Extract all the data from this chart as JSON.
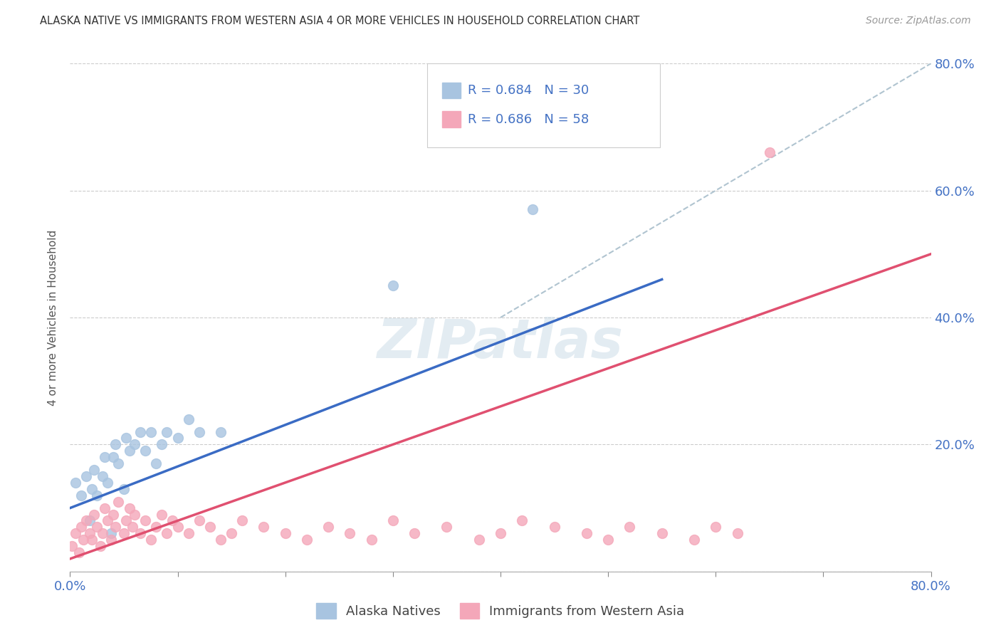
{
  "title": "ALASKA NATIVE VS IMMIGRANTS FROM WESTERN ASIA 4 OR MORE VEHICLES IN HOUSEHOLD CORRELATION CHART",
  "source": "Source: ZipAtlas.com",
  "ylabel": "4 or more Vehicles in Household",
  "xlim": [
    0.0,
    0.8
  ],
  "ylim": [
    0.0,
    0.8
  ],
  "legend_label_blue": "Alaska Natives",
  "legend_label_pink": "Immigrants from Western Asia",
  "R_blue": 0.684,
  "N_blue": 30,
  "R_pink": 0.686,
  "N_pink": 58,
  "color_blue": "#a8c4e0",
  "color_pink": "#f4a7b9",
  "line_blue": "#3a6bc4",
  "line_pink": "#e05070",
  "line_dashed": "#b0c4d0",
  "watermark": "ZIPatlas",
  "blue_line_x": [
    0.0,
    0.55
  ],
  "blue_line_y": [
    0.1,
    0.46
  ],
  "pink_line_x": [
    0.0,
    0.8
  ],
  "pink_line_y": [
    0.02,
    0.5
  ],
  "dashed_line_x": [
    0.4,
    0.8
  ],
  "dashed_line_y": [
    0.4,
    0.8
  ],
  "alaska_x": [
    0.005,
    0.01,
    0.015,
    0.018,
    0.02,
    0.022,
    0.025,
    0.03,
    0.032,
    0.035,
    0.038,
    0.04,
    0.042,
    0.045,
    0.05,
    0.052,
    0.055,
    0.06,
    0.065,
    0.07,
    0.075,
    0.08,
    0.085,
    0.09,
    0.1,
    0.11,
    0.12,
    0.14,
    0.3,
    0.43
  ],
  "alaska_y": [
    0.14,
    0.12,
    0.15,
    0.08,
    0.13,
    0.16,
    0.12,
    0.15,
    0.18,
    0.14,
    0.06,
    0.18,
    0.2,
    0.17,
    0.13,
    0.21,
    0.19,
    0.2,
    0.22,
    0.19,
    0.22,
    0.17,
    0.2,
    0.22,
    0.21,
    0.24,
    0.22,
    0.22,
    0.45,
    0.57
  ],
  "western_x": [
    0.002,
    0.005,
    0.008,
    0.01,
    0.012,
    0.015,
    0.018,
    0.02,
    0.022,
    0.025,
    0.028,
    0.03,
    0.032,
    0.035,
    0.038,
    0.04,
    0.042,
    0.045,
    0.05,
    0.052,
    0.055,
    0.058,
    0.06,
    0.065,
    0.07,
    0.075,
    0.08,
    0.085,
    0.09,
    0.095,
    0.1,
    0.11,
    0.12,
    0.13,
    0.14,
    0.15,
    0.16,
    0.18,
    0.2,
    0.22,
    0.24,
    0.26,
    0.28,
    0.3,
    0.32,
    0.35,
    0.38,
    0.4,
    0.42,
    0.45,
    0.48,
    0.5,
    0.52,
    0.55,
    0.58,
    0.6,
    0.62,
    0.65
  ],
  "western_y": [
    0.04,
    0.06,
    0.03,
    0.07,
    0.05,
    0.08,
    0.06,
    0.05,
    0.09,
    0.07,
    0.04,
    0.06,
    0.1,
    0.08,
    0.05,
    0.09,
    0.07,
    0.11,
    0.06,
    0.08,
    0.1,
    0.07,
    0.09,
    0.06,
    0.08,
    0.05,
    0.07,
    0.09,
    0.06,
    0.08,
    0.07,
    0.06,
    0.08,
    0.07,
    0.05,
    0.06,
    0.08,
    0.07,
    0.06,
    0.05,
    0.07,
    0.06,
    0.05,
    0.08,
    0.06,
    0.07,
    0.05,
    0.06,
    0.08,
    0.07,
    0.06,
    0.05,
    0.07,
    0.06,
    0.05,
    0.07,
    0.06,
    0.66
  ]
}
